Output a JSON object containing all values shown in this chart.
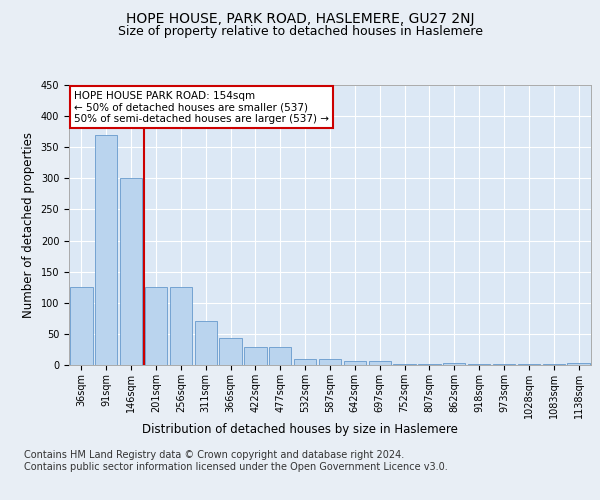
{
  "title": "HOPE HOUSE, PARK ROAD, HASLEMERE, GU27 2NJ",
  "subtitle": "Size of property relative to detached houses in Haslemere",
  "xlabel": "Distribution of detached houses by size in Haslemere",
  "ylabel": "Number of detached properties",
  "categories": [
    "36sqm",
    "91sqm",
    "146sqm",
    "201sqm",
    "256sqm",
    "311sqm",
    "366sqm",
    "422sqm",
    "477sqm",
    "532sqm",
    "587sqm",
    "642sqm",
    "697sqm",
    "752sqm",
    "807sqm",
    "862sqm",
    "918sqm",
    "973sqm",
    "1028sqm",
    "1083sqm",
    "1138sqm"
  ],
  "values": [
    125,
    370,
    300,
    125,
    125,
    71,
    44,
    29,
    29,
    9,
    9,
    6,
    6,
    2,
    2,
    3,
    2,
    1,
    2,
    1,
    3
  ],
  "bar_color": "#bad4ee",
  "bar_edge_color": "#6699cc",
  "vline_x": 2.5,
  "vline_color": "#cc0000",
  "annotation_line1": "HOPE HOUSE PARK ROAD: 154sqm",
  "annotation_line2": "← 50% of detached houses are smaller (537)",
  "annotation_line3": "50% of semi-detached houses are larger (537) →",
  "annotation_box_edgecolor": "#cc0000",
  "annotation_box_facecolor": "#ffffff",
  "ylim": [
    0,
    450
  ],
  "yticks": [
    0,
    50,
    100,
    150,
    200,
    250,
    300,
    350,
    400,
    450
  ],
  "footer_text": "Contains HM Land Registry data © Crown copyright and database right 2024.\nContains public sector information licensed under the Open Government Licence v3.0.",
  "background_color": "#e8eef5",
  "plot_background": "#dce8f5",
  "grid_color": "#ffffff",
  "title_fontsize": 10,
  "subtitle_fontsize": 9,
  "axis_label_fontsize": 8.5,
  "tick_fontsize": 7,
  "footer_fontsize": 7,
  "annotation_fontsize": 7.5
}
